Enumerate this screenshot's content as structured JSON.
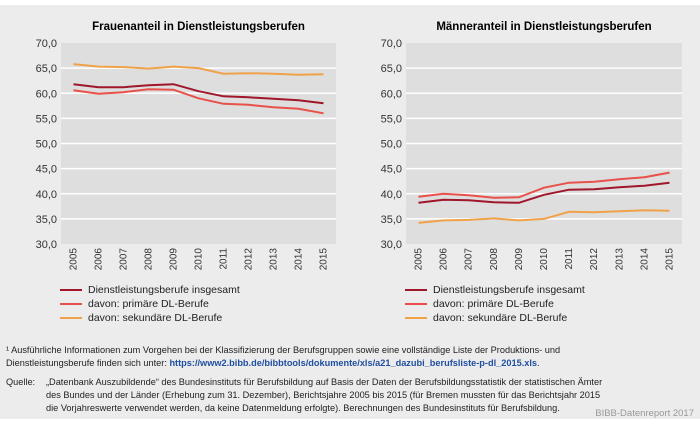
{
  "colors": {
    "total": "#a0162b",
    "primary": "#e8504a",
    "secondary": "#f0a24a",
    "plot_bg": "#dedede",
    "grid": "#ffffff"
  },
  "chart_data": [
    {
      "type": "line",
      "title": "Frauenanteil in Dienstleistungsberufen",
      "categories": [
        "2005",
        "2006",
        "2007",
        "2008",
        "2009",
        "2010",
        "2011",
        "2012",
        "2013",
        "2014",
        "2015"
      ],
      "ylim": [
        30,
        70
      ],
      "yticks": [
        "30,0",
        "35,0",
        "40,0",
        "45,0",
        "50,0",
        "55,0",
        "60,0",
        "65,0",
        "70,0"
      ],
      "grid": true,
      "legend": "bottom",
      "series": [
        {
          "name": "Dienstleistungsberufe insgesamt",
          "key": "total",
          "values": [
            61.8,
            61.2,
            61.2,
            61.6,
            61.8,
            60.4,
            59.4,
            59.2,
            58.9,
            58.6,
            58.0
          ]
        },
        {
          "name": "davon: primäre DL-Berufe",
          "key": "primary",
          "values": [
            60.6,
            59.9,
            60.2,
            60.8,
            60.7,
            59.0,
            57.9,
            57.7,
            57.2,
            56.9,
            56.0
          ]
        },
        {
          "name": "davon: sekundäre DL-Berufe",
          "key": "secondary",
          "values": [
            65.8,
            65.3,
            65.2,
            64.9,
            65.3,
            65.0,
            63.9,
            64.0,
            63.9,
            63.7,
            63.8
          ]
        }
      ]
    },
    {
      "type": "line",
      "title": "Männeranteil in Dienstleistungsberufen",
      "categories": [
        "2005",
        "2006",
        "2007",
        "2008",
        "2009",
        "2010",
        "2011",
        "2012",
        "2013",
        "2014",
        "2015"
      ],
      "ylim": [
        30,
        70
      ],
      "yticks": [
        "30,0",
        "35,0",
        "40,0",
        "45,0",
        "50,0",
        "55,0",
        "60,0",
        "65,0",
        "70,0"
      ],
      "grid": true,
      "legend": "bottom",
      "series": [
        {
          "name": "Dienstleistungsberufe insgesamt",
          "key": "total",
          "values": [
            38.2,
            38.8,
            38.7,
            38.3,
            38.2,
            39.8,
            40.8,
            40.9,
            41.3,
            41.6,
            42.2
          ]
        },
        {
          "name": "davon: primäre DL-Berufe",
          "key": "primary",
          "values": [
            39.4,
            40.0,
            39.7,
            39.2,
            39.3,
            41.2,
            42.2,
            42.4,
            42.9,
            43.3,
            44.2
          ]
        },
        {
          "name": "davon: sekundäre DL-Berufe",
          "key": "secondary",
          "values": [
            34.2,
            34.7,
            34.8,
            35.1,
            34.7,
            35.0,
            36.4,
            36.3,
            36.5,
            36.7,
            36.6
          ]
        }
      ]
    }
  ],
  "footnote": {
    "text": "¹ Ausführliche Informationen zum Vorgehen bei der Klassifizierung der Berufsgruppen sowie eine vollständige Liste der Produktions- und Dienstleistungsberufe finden sich unter: ",
    "link": "https://www2.bibb.de/bibbtools/dokumente/xls/a21_dazubi_berufsliste-p-dl_2015.xls",
    "end": "."
  },
  "source": {
    "label": "Quelle:",
    "text": "„Datenbank Auszubildende“ des Bundesinstituts für Berufsbildung auf Basis der Daten der Berufsbildungsstatistik der statistischen Ämter des Bundes und der Länder (Erhebung zum 31. Dezember), Berichtsjahre 2005 bis 2015 (für Bremen mussten für das Berichtsjahr 2015 die Vorjahreswerte verwendet werden, da keine Datenmeldung erfolgte). Berechnungen des Bundesinstituts für Berufsbildung."
  },
  "brand": "BIBB-Datenreport 2017"
}
